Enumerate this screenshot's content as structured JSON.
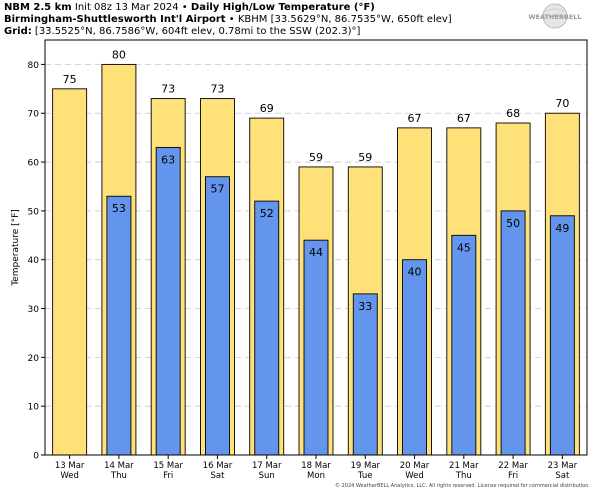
{
  "header": {
    "model": "NBM 2.5 km",
    "init": "Init 08z 13 Mar 2024",
    "bullet": "•",
    "title": "Daily High/Low Temperature (°F)",
    "station": "Birmingham-Shuttlesworth Int'l Airport",
    "station_info": "KBHM [33.5629°N, 86.7535°W, 650ft elev]",
    "grid_label": "Grid:",
    "grid_info": "[33.5525°N, 86.7586°W, 604ft elev, 0.78mi to the SSW (202.3)°]"
  },
  "logo": {
    "text": "WEATHERBELL"
  },
  "footer": {
    "text": "© 2024 WeatherBELL Analytics, LLC. All rights reserved. License required for commercial distribution."
  },
  "colors": {
    "high": "#ffe17a",
    "low": "#6495ed",
    "grid": "#c8c8c8",
    "axis": "#000000"
  },
  "chart_data": {
    "type": "bar",
    "title": "Daily High/Low Temperature (°F)",
    "ylabel": "Temperature [°F]",
    "xlabel": "",
    "ylim": [
      0,
      85
    ],
    "yticks": [
      0,
      10,
      20,
      30,
      40,
      50,
      60,
      70,
      80
    ],
    "grid": true,
    "categories": [
      {
        "date": "13 Mar",
        "day": "Wed"
      },
      {
        "date": "14 Mar",
        "day": "Thu"
      },
      {
        "date": "15 Mar",
        "day": "Fri"
      },
      {
        "date": "16 Mar",
        "day": "Sat"
      },
      {
        "date": "17 Mar",
        "day": "Sun"
      },
      {
        "date": "18 Mar",
        "day": "Mon"
      },
      {
        "date": "19 Mar",
        "day": "Tue"
      },
      {
        "date": "20 Mar",
        "day": "Wed"
      },
      {
        "date": "21 Mar",
        "day": "Thu"
      },
      {
        "date": "22 Mar",
        "day": "Fri"
      },
      {
        "date": "23 Mar",
        "day": "Sat"
      }
    ],
    "series": [
      {
        "name": "High",
        "values": [
          75,
          80,
          73,
          73,
          69,
          59,
          59,
          67,
          67,
          68,
          70
        ]
      },
      {
        "name": "Low",
        "values": [
          null,
          53,
          63,
          57,
          52,
          44,
          33,
          40,
          45,
          50,
          49
        ]
      }
    ]
  }
}
